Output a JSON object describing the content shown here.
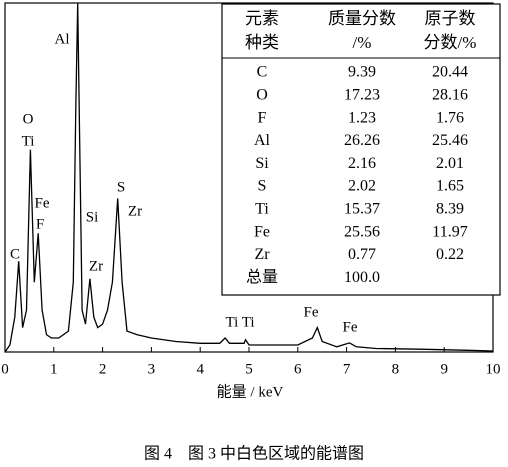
{
  "chart_data": {
    "type": "line",
    "xlabel": "能量 / keV",
    "caption": "图 4　图 3 中白色区域的能谱图",
    "x": [
      0,
      0.1,
      0.2,
      0.28,
      0.36,
      0.44,
      0.52,
      0.6,
      0.68,
      0.76,
      0.85,
      0.95,
      1.1,
      1.3,
      1.4,
      1.45,
      1.49,
      1.53,
      1.58,
      1.65,
      1.74,
      1.82,
      1.9,
      2.0,
      2.1,
      2.2,
      2.31,
      2.4,
      2.5,
      2.7,
      3.0,
      3.5,
      4.0,
      4.4,
      4.51,
      4.6,
      4.9,
      4.93,
      5.0,
      5.5,
      6.0,
      6.3,
      6.4,
      6.5,
      6.8,
      7.06,
      7.2,
      7.6,
      8.5,
      9.5,
      10
    ],
    "series": [
      {
        "color": "#000000",
        "values": [
          0,
          2,
          10,
          26,
          7,
          12,
          58,
          20,
          34,
          12,
          5,
          4,
          4,
          6,
          20,
          70,
          100,
          60,
          12,
          8,
          21,
          10,
          7,
          8,
          12,
          20,
          44,
          20,
          6,
          5,
          4,
          3,
          2.5,
          2.5,
          4,
          2.5,
          2.5,
          3.5,
          2,
          2,
          2,
          4,
          7,
          3,
          1.5,
          2.6,
          1.5,
          1,
          0.8,
          0.5,
          0.3
        ]
      }
    ],
    "xlim": [
      0,
      10
    ],
    "xticks": [
      0,
      1,
      2,
      3,
      4,
      5,
      6,
      7,
      8,
      9,
      10
    ],
    "ylim": [
      0,
      100
    ],
    "annotations": [
      "Al",
      "O",
      "Ti",
      "Fe",
      "F",
      "C",
      "Si",
      "S",
      "Zr",
      "Zr",
      "Ti Ti",
      "Fe",
      "Fe"
    ],
    "table": {
      "header": [
        [
          "元素",
          "种类"
        ],
        [
          "质量分数",
          "/%"
        ],
        [
          "原子数",
          "分数/%"
        ]
      ],
      "rows": [
        [
          "C",
          "9.39",
          "20.44"
        ],
        [
          "O",
          "17.23",
          "28.16"
        ],
        [
          "F",
          "1.23",
          "1.76"
        ],
        [
          "Al",
          "26.26",
          "25.46"
        ],
        [
          "Si",
          "2.16",
          "2.01"
        ],
        [
          "S",
          "2.02",
          "1.65"
        ],
        [
          "Ti",
          "15.37",
          "8.39"
        ],
        [
          "Fe",
          "25.56",
          "11.97"
        ],
        [
          "Zr",
          "0.77",
          "0.22"
        ],
        [
          "总量",
          "100.0",
          ""
        ]
      ]
    }
  }
}
